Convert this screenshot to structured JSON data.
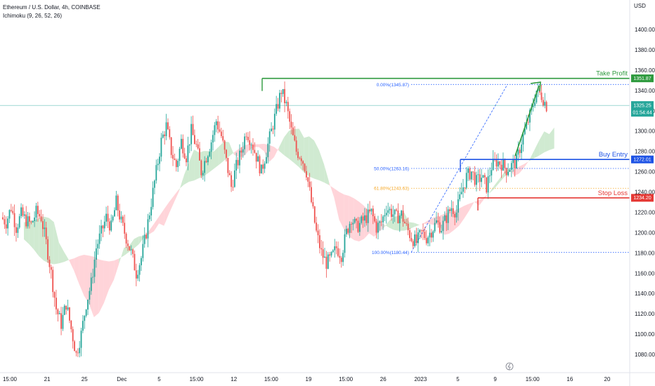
{
  "legend": {
    "symbol": "Ethereum / U.S. Dollar, 4h, COINBASE",
    "indicator": "Ichimoku (9, 26, 52, 26)"
  },
  "currency": "USD",
  "colors": {
    "up": "#26a69a",
    "down": "#ef5350",
    "take_profit": "#2e9a3e",
    "buy_entry": "#1e53e5",
    "stop_loss": "#e53935",
    "fib": "#2962ff",
    "fib_618": "#f5a623",
    "cloud_bull": "#c8e6c9",
    "cloud_bear": "#ffcdd2",
    "price_tag": "#26a69a"
  },
  "chart_data": {
    "type": "candlestick",
    "ylim": [
      1065,
      1425
    ],
    "y_ticks": [
      1080,
      1100,
      1120,
      1140,
      1160,
      1180,
      1200,
      1220,
      1240,
      1260,
      1280,
      1300,
      1320,
      1340,
      1360,
      1380,
      1400
    ],
    "x_ticks": [
      "15:00",
      "21",
      "25",
      "Dec",
      "5",
      "15:00",
      "12",
      "15:00",
      "19",
      "15:00",
      "26",
      "2023",
      "5",
      "9",
      "15:00",
      "16",
      "20"
    ],
    "current_price": "1325.25",
    "countdown": "01:54:44",
    "levels": [
      {
        "name": "Take Profit",
        "value": 1351.87,
        "label": "1351.87"
      },
      {
        "name": "Buy Entry",
        "value": 1272.01,
        "label": "1272.01"
      },
      {
        "name": "Stop Loss",
        "value": 1234.2,
        "label": "1234.20"
      }
    ],
    "fib_levels": [
      {
        "value": 1345.87,
        "label": "0.00%(1345.87)"
      },
      {
        "value": 1263.16,
        "label": "50.00%(1263.16)"
      },
      {
        "value": 1243.63,
        "label": "61.80%(1243.63)"
      },
      {
        "value": 1180.44,
        "label": "100.00%(1180.44)"
      }
    ],
    "close_path": [
      1215,
      1210,
      1225,
      1205,
      1218,
      1212,
      1208,
      1220,
      1215,
      1190,
      1160,
      1125,
      1110,
      1130,
      1105,
      1080,
      1100,
      1130,
      1150,
      1185,
      1200,
      1215,
      1205,
      1230,
      1210,
      1195,
      1180,
      1160,
      1175,
      1200,
      1230,
      1260,
      1290,
      1305,
      1280,
      1265,
      1290,
      1275,
      1300,
      1285,
      1260,
      1275,
      1290,
      1310,
      1295,
      1270,
      1245,
      1265,
      1280,
      1300,
      1290,
      1275,
      1260,
      1280,
      1300,
      1320,
      1340,
      1325,
      1300,
      1280,
      1275,
      1260,
      1230,
      1200,
      1180,
      1170,
      1175,
      1185,
      1178,
      1200,
      1215,
      1205,
      1210,
      1215,
      1220,
      1205,
      1210,
      1225,
      1220,
      1215,
      1218,
      1205,
      1195,
      1190,
      1200,
      1195,
      1202,
      1210,
      1205,
      1215,
      1225,
      1220,
      1240,
      1255,
      1260,
      1250,
      1255,
      1245,
      1265,
      1270,
      1268,
      1262,
      1266,
      1270,
      1290,
      1305,
      1320,
      1340,
      1335,
      1325
    ]
  }
}
